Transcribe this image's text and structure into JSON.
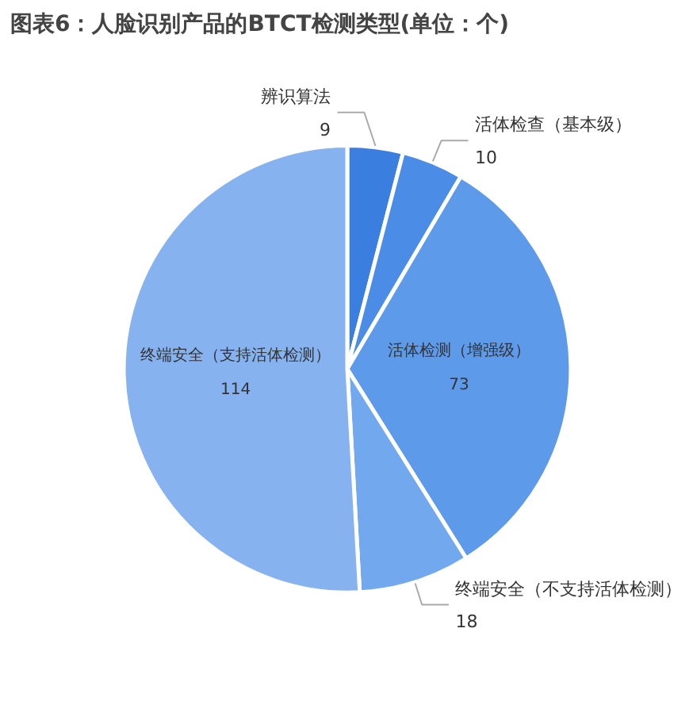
{
  "chart_data": {
    "type": "pie",
    "title": "图表6：人脸识别产品的BTCT检测类型(单位：个)",
    "categories": [
      "辨识算法",
      "活体检查（基本级）",
      "活体检测（增强级）",
      "终端安全（不支持活体检测）",
      "终端安全（支持活体检测）"
    ],
    "values": [
      9,
      10,
      73,
      18,
      114
    ],
    "colors": [
      "#3a7fe0",
      "#4b8de6",
      "#5e9aea",
      "#72a8ee",
      "#86b3f0"
    ],
    "data_labels": true,
    "legend": false
  }
}
